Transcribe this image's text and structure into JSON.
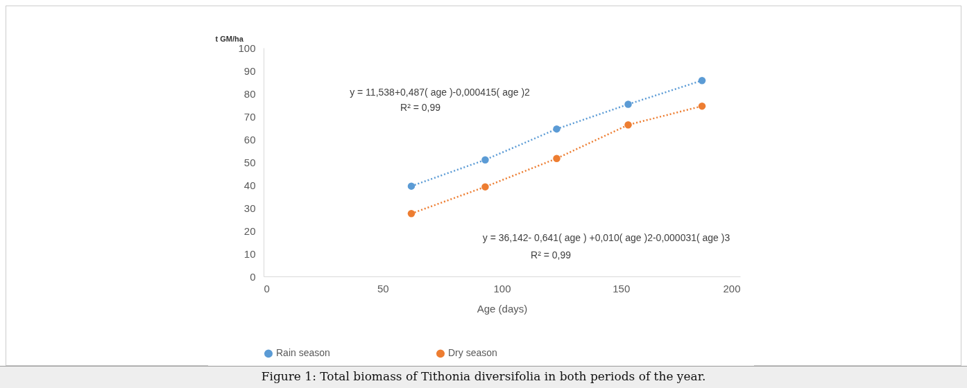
{
  "chart_data": {
    "type": "line",
    "title": "Figure 1: Total biomass of Tithonia diversifolia in both periods of the year.",
    "xlabel": "Age (days)",
    "ylabel": "t GM/ha",
    "x": [
      62,
      93,
      123,
      153,
      184
    ],
    "series": [
      {
        "name": "Rain season",
        "color": "#5b9bd5",
        "values": [
          39.5,
          51,
          64.5,
          75.3,
          85.7
        ]
      },
      {
        "name": "Dry season",
        "color": "#ed7d31",
        "values": [
          27.5,
          39.2,
          51.6,
          66.3,
          74.5
        ]
      }
    ],
    "xlim": [
      0,
      200
    ],
    "xticks": [
      0,
      50,
      100,
      150,
      200
    ],
    "ylim": [
      0,
      100
    ],
    "yticks": [
      0,
      10,
      20,
      30,
      40,
      50,
      60,
      70,
      80,
      90,
      100
    ],
    "annotations": [
      "y = 11,538+0,487( age )-0,000415( age )2",
      "R² = 0,99",
      "y = 36,142- 0,641( age ) +0,010( age )2-0,000031( age )3",
      "R² = 0,99"
    ],
    "grid": false,
    "legend": "bottom",
    "marker": "circle",
    "line_style": "dotted"
  }
}
